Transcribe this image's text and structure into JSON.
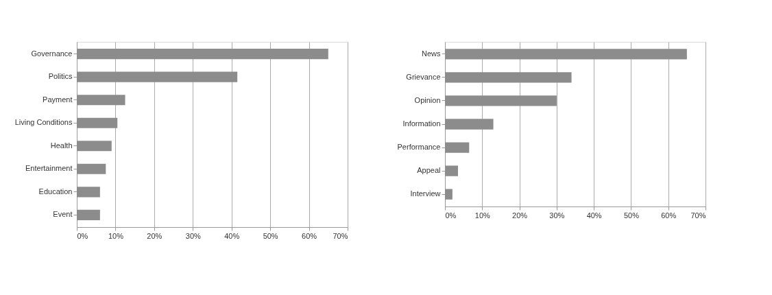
{
  "chart_data": [
    {
      "type": "bar",
      "orientation": "horizontal",
      "categories": [
        "Governance",
        "Politics",
        "Payment",
        "Living Conditions",
        "Health",
        "Entertainment",
        "Education",
        "Event"
      ],
      "series": [
        {
          "color": "#8c8c8c",
          "values": [
            65,
            41.5,
            12.5,
            10.5,
            9,
            7.5,
            6,
            6
          ]
        }
      ],
      "xlim": [
        0,
        70
      ],
      "xticks": [
        {
          "value": 0,
          "label": "0%"
        },
        {
          "value": 10,
          "label": "10%"
        },
        {
          "value": 20,
          "label": "20%"
        },
        {
          "value": 30,
          "label": "30%"
        },
        {
          "value": 40,
          "label": "40%"
        },
        {
          "value": 50,
          "label": "50%"
        },
        {
          "value": 60,
          "label": "60%"
        },
        {
          "value": 70,
          "label": "70%"
        }
      ],
      "grid": "x"
    },
    {
      "type": "bar",
      "orientation": "horizontal",
      "categories": [
        "News",
        "Grievance",
        "Opinion",
        "Information",
        "Performance",
        "Appeal",
        "Interview"
      ],
      "series": [
        {
          "color": "#8c8c8c",
          "values": [
            65,
            34,
            30,
            13,
            6.5,
            3.5,
            2
          ]
        }
      ],
      "xlim": [
        0,
        70
      ],
      "xticks": [
        {
          "value": 0,
          "label": "0%"
        },
        {
          "value": 10,
          "label": "10%"
        },
        {
          "value": 20,
          "label": "20%"
        },
        {
          "value": 30,
          "label": "30%"
        },
        {
          "value": 40,
          "label": "40%"
        },
        {
          "value": 50,
          "label": "50%"
        },
        {
          "value": 60,
          "label": "60%"
        },
        {
          "value": 70,
          "label": "70%"
        }
      ],
      "grid": "x"
    }
  ]
}
